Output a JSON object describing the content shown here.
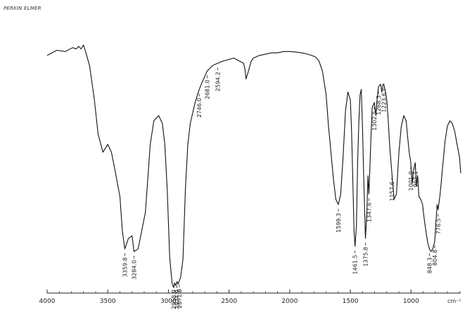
{
  "brand": "PERKIN ELMER",
  "chart_data": {
    "type": "line",
    "title": "",
    "xlabel": "cm⁻¹",
    "ylabel": "",
    "x_reversed": true,
    "xlim": [
      4000,
      590
    ],
    "ylim": [
      0,
      1
    ],
    "grid": false,
    "x_ticks": [
      4000,
      3500,
      3000,
      2500,
      2000,
      1500,
      1000
    ],
    "x_tick_labels": [
      "4000",
      "3500",
      "3000",
      "2500",
      "2000",
      "1500",
      "1000"
    ],
    "series": [
      {
        "x": [
          4000,
          3920,
          3850,
          3790,
          3760,
          3740,
          3720,
          3700,
          3680,
          3650,
          3610,
          3580,
          3540,
          3500,
          3470,
          3440,
          3400,
          3380,
          3359.8,
          3330,
          3300,
          3284.0,
          3250,
          3220,
          3190,
          3150,
          3120,
          3080,
          3050,
          3030,
          3010,
          2990,
          2970,
          2960,
          2955,
          2950,
          2940,
          2930,
          2920,
          2910,
          2900,
          2880,
          2860,
          2840,
          2820,
          2800,
          2780,
          2760,
          2746,
          2720,
          2700,
          2681,
          2660,
          2640,
          2620,
          2594,
          2570,
          2540,
          2500,
          2460,
          2420,
          2380,
          2370,
          2360,
          2340,
          2320,
          2300,
          2250,
          2200,
          2150,
          2100,
          2050,
          2000,
          1950,
          1900,
          1850,
          1820,
          1790,
          1760,
          1730,
          1700,
          1680,
          1660,
          1640,
          1620,
          1599.3,
          1580,
          1560,
          1540,
          1520,
          1500,
          1490,
          1480,
          1470,
          1461.5,
          1450,
          1440,
          1430,
          1420,
          1410,
          1400,
          1390,
          1380,
          1375.8,
          1365,
          1355,
          1347.6,
          1340,
          1330,
          1320,
          1302.5,
          1290,
          1280,
          1268.3,
          1250,
          1240,
          1230,
          1223.6,
          1210,
          1200,
          1190,
          1175,
          1157.6,
          1140,
          1120,
          1100,
          1080,
          1060,
          1040,
          1030,
          1015,
          1001.9,
          990,
          980,
          965.1,
          955,
          945,
          935,
          920,
          905,
          890,
          875,
          860,
          848.3,
          835,
          820,
          804.8,
          795,
          785,
          776.5,
          760,
          740,
          720,
          700,
          680,
          660,
          640,
          620,
          600,
          590
        ],
        "y": [
          0.89,
          0.91,
          0.905,
          0.92,
          0.915,
          0.925,
          0.915,
          0.93,
          0.9,
          0.85,
          0.72,
          0.59,
          0.52,
          0.55,
          0.52,
          0.45,
          0.35,
          0.22,
          0.15,
          0.19,
          0.2,
          0.14,
          0.15,
          0.22,
          0.29,
          0.55,
          0.64,
          0.66,
          0.63,
          0.55,
          0.38,
          0.12,
          0.02,
          0.005,
          0.004,
          0.02,
          0.01,
          0.025,
          0.015,
          0.03,
          0.04,
          0.11,
          0.38,
          0.55,
          0.63,
          0.67,
          0.71,
          0.74,
          0.76,
          0.79,
          0.81,
          0.83,
          0.84,
          0.85,
          0.855,
          0.86,
          0.865,
          0.87,
          0.875,
          0.88,
          0.87,
          0.86,
          0.84,
          0.8,
          0.83,
          0.865,
          0.88,
          0.89,
          0.895,
          0.9,
          0.9,
          0.905,
          0.905,
          0.903,
          0.9,
          0.895,
          0.89,
          0.885,
          0.87,
          0.83,
          0.74,
          0.62,
          0.52,
          0.42,
          0.34,
          0.32,
          0.36,
          0.5,
          0.68,
          0.75,
          0.72,
          0.6,
          0.42,
          0.22,
          0.16,
          0.24,
          0.48,
          0.64,
          0.74,
          0.76,
          0.62,
          0.42,
          0.26,
          0.19,
          0.28,
          0.43,
          0.36,
          0.45,
          0.58,
          0.69,
          0.71,
          0.66,
          0.72,
          0.77,
          0.78,
          0.75,
          0.78,
          0.78,
          0.75,
          0.72,
          0.66,
          0.54,
          0.44,
          0.34,
          0.36,
          0.52,
          0.62,
          0.66,
          0.64,
          0.59,
          0.52,
          0.48,
          0.4,
          0.45,
          0.48,
          0.39,
          0.43,
          0.35,
          0.34,
          0.32,
          0.26,
          0.21,
          0.17,
          0.15,
          0.14,
          0.15,
          0.18,
          0.25,
          0.32,
          0.3,
          0.36,
          0.46,
          0.56,
          0.62,
          0.64,
          0.63,
          0.6,
          0.55,
          0.5,
          0.44
        ]
      }
    ],
    "peaks": [
      {
        "x": 3359.8,
        "label": "3359.8"
      },
      {
        "x": 3284.0,
        "label": "3284.0"
      },
      {
        "x": 2955,
        "label": "2958.9"
      },
      {
        "x": 2930,
        "label": "2924.9"
      },
      {
        "x": 2910,
        "label": "2871.9"
      },
      {
        "x": 2746,
        "label": "2746.0"
      },
      {
        "x": 2681,
        "label": "2681.0"
      },
      {
        "x": 2594,
        "label": "2594.2"
      },
      {
        "x": 1599.3,
        "label": "1599.3"
      },
      {
        "x": 1461.5,
        "label": "1461.5"
      },
      {
        "x": 1375.8,
        "label": "1375.8"
      },
      {
        "x": 1347.6,
        "label": "1347.6"
      },
      {
        "x": 1302.5,
        "label": "1302.5"
      },
      {
        "x": 1268.3,
        "label": "1268.3"
      },
      {
        "x": 1223.6,
        "label": "1223.6"
      },
      {
        "x": 1157.6,
        "label": "1157.6"
      },
      {
        "x": 1001.9,
        "label": "1001.9"
      },
      {
        "x": 965.1,
        "label": "965.1"
      },
      {
        "x": 848.3,
        "label": "848.3"
      },
      {
        "x": 804.8,
        "label": "804.8"
      },
      {
        "x": 776.5,
        "label": "776.5"
      }
    ]
  }
}
